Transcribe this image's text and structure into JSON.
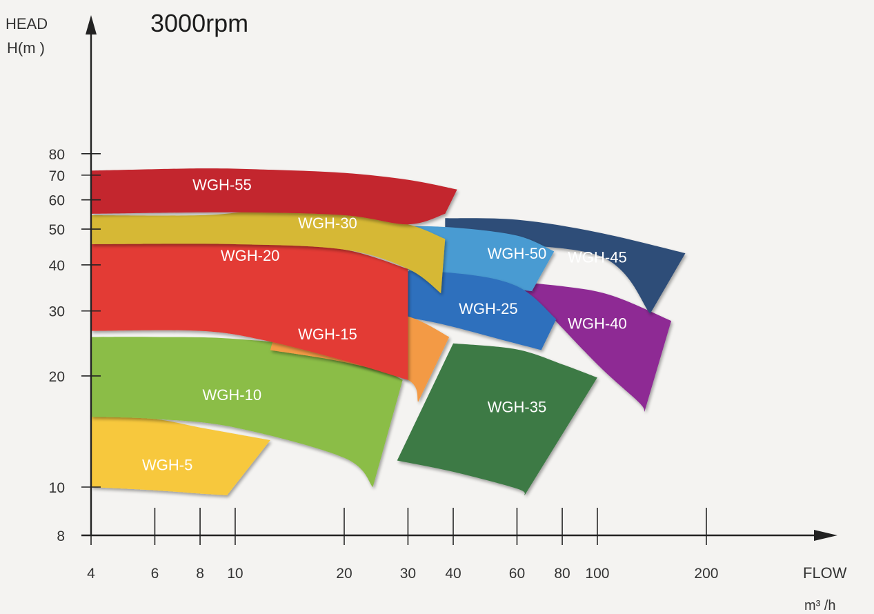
{
  "chart_data": {
    "type": "area",
    "title": "3000rpm",
    "ylabel_line1": "HEAD",
    "ylabel_line2": "H(m )",
    "xlabel": "FLOW",
    "xunit": "m³ /h",
    "x_scale": "log",
    "y_scale": "log",
    "xlim": [
      4,
      300
    ],
    "ylim": [
      8,
      90
    ],
    "x_ticks": [
      4,
      6,
      8,
      10,
      20,
      30,
      40,
      60,
      80,
      100,
      200
    ],
    "x_tick_labels": [
      "4",
      "6",
      "8",
      "10",
      "20",
      "30",
      "40",
      "60",
      "80",
      "100",
      "200"
    ],
    "y_ticks": [
      8,
      10,
      20,
      30,
      40,
      50,
      60,
      70,
      80
    ],
    "y_tick_labels": [
      "8",
      "10",
      "20",
      "30",
      "40",
      "50",
      "60",
      "70",
      "80"
    ],
    "series": [
      {
        "name": "WGH-35",
        "color": "#3c7a44",
        "label_at": [
          60,
          16.5
        ],
        "top": [
          [
            40,
            24.5
          ],
          [
            60,
            23.6
          ],
          [
            80,
            21.5
          ],
          [
            100,
            19.8
          ]
        ],
        "bottom": [
          [
            28,
            11.8
          ],
          [
            40,
            11
          ],
          [
            60,
            9.9
          ],
          [
            63,
            9.5
          ]
        ]
      },
      {
        "name": "WGH-5",
        "color": "#f7c83c",
        "label_at": [
          6.5,
          11.5
        ],
        "top": [
          [
            4,
            15.8
          ],
          [
            6,
            15.3
          ],
          [
            8,
            14.5
          ],
          [
            12.5,
            13.4
          ]
        ],
        "bottom": [
          [
            4,
            10
          ],
          [
            6,
            9.8
          ],
          [
            8,
            9.6
          ],
          [
            9.5,
            9.5
          ]
        ]
      },
      {
        "name": "WGH-10",
        "color": "#8bbd47",
        "label_at": [
          9.8,
          17.8
        ],
        "top": [
          [
            4,
            25.5
          ],
          [
            6,
            25.5
          ],
          [
            10,
            25.2
          ],
          [
            20,
            23.3
          ],
          [
            29,
            19.5
          ]
        ],
        "bottom": [
          [
            4,
            15.5
          ],
          [
            6,
            15.3
          ],
          [
            10,
            14.5
          ],
          [
            20,
            12
          ],
          [
            24,
            10
          ]
        ]
      },
      {
        "name": "WGH-40",
        "color": "#8e2c94",
        "label_at": [
          100,
          27.8
        ],
        "top": [
          [
            50,
            36.5
          ],
          [
            80,
            35
          ],
          [
            110,
            33
          ],
          [
            160,
            28.2
          ]
        ],
        "bottom": [
          [
            68,
            32
          ],
          [
            100,
            21.5
          ],
          [
            130,
            17
          ],
          [
            135,
            16
          ]
        ]
      },
      {
        "name": "WGH-45",
        "color": "#2e4d78",
        "label_at": [
          100,
          42
        ],
        "top": [
          [
            38,
            53.5
          ],
          [
            60,
            53
          ],
          [
            100,
            49
          ],
          [
            175,
            43
          ]
        ],
        "bottom": [
          [
            38,
            46
          ],
          [
            100,
            42.5
          ],
          [
            140,
            29.5
          ]
        ]
      },
      {
        "name": "WGH-50",
        "color": "#4a9bd2",
        "label_at": [
          60,
          43
        ],
        "top": [
          [
            27,
            51
          ],
          [
            40,
            50.5
          ],
          [
            60,
            48
          ],
          [
            76,
            43.5
          ]
        ],
        "bottom": [
          [
            31,
            36
          ],
          [
            50,
            35
          ],
          [
            65,
            34
          ],
          [
            66,
            34
          ]
        ]
      },
      {
        "name": "WGH-25",
        "color": "#2d6fbd",
        "label_at": [
          50,
          30.5
        ],
        "top": [
          [
            22,
            38.5
          ],
          [
            40,
            38
          ],
          [
            60,
            35
          ],
          [
            77,
            28.5
          ]
        ],
        "bottom": [
          [
            21,
            30.5
          ],
          [
            35,
            28
          ],
          [
            55,
            25
          ],
          [
            70,
            23.5
          ]
        ]
      },
      {
        "name": "WGH-15",
        "color": "#f39a44",
        "label_at": [
          18,
          26
        ],
        "top": [
          [
            13.5,
            31
          ],
          [
            20,
            31
          ],
          [
            30,
            29
          ],
          [
            39,
            25.5
          ]
        ],
        "bottom": [
          [
            12.5,
            23.5
          ],
          [
            20,
            21.8
          ],
          [
            30,
            19.5
          ],
          [
            32,
            17
          ]
        ]
      },
      {
        "name": "WGH-20",
        "color": "#e33a35",
        "label_at": [
          11,
          42.5
        ],
        "top": [
          [
            4,
            46
          ],
          [
            7,
            46.5
          ],
          [
            11,
            46.5
          ],
          [
            20,
            44
          ],
          [
            30,
            39
          ]
        ],
        "bottom": [
          [
            4,
            26.5
          ],
          [
            8,
            26.5
          ],
          [
            12,
            25
          ],
          [
            20,
            22
          ],
          [
            30,
            19.5
          ]
        ]
      },
      {
        "name": "WGH-30",
        "color": "#d6b834",
        "label_at": [
          18,
          52
        ],
        "top": [
          [
            4,
            54.5
          ],
          [
            8,
            54.5
          ],
          [
            12,
            56
          ],
          [
            20,
            55
          ],
          [
            30,
            51.5
          ],
          [
            38,
            47
          ]
        ],
        "bottom": [
          [
            4,
            45.5
          ],
          [
            10,
            45.5
          ],
          [
            20,
            44
          ],
          [
            30,
            39
          ],
          [
            37,
            33.5
          ]
        ]
      },
      {
        "name": "WGH-55",
        "color": "#c3252d",
        "label_at": [
          9.2,
          66
        ],
        "top": [
          [
            4,
            72
          ],
          [
            8,
            73
          ],
          [
            12,
            72.5
          ],
          [
            20,
            71
          ],
          [
            30,
            68
          ],
          [
            41,
            64
          ]
        ],
        "bottom": [
          [
            4,
            55
          ],
          [
            10,
            55.5
          ],
          [
            20,
            54.5
          ],
          [
            30,
            51.5
          ],
          [
            38,
            55
          ]
        ]
      }
    ]
  }
}
